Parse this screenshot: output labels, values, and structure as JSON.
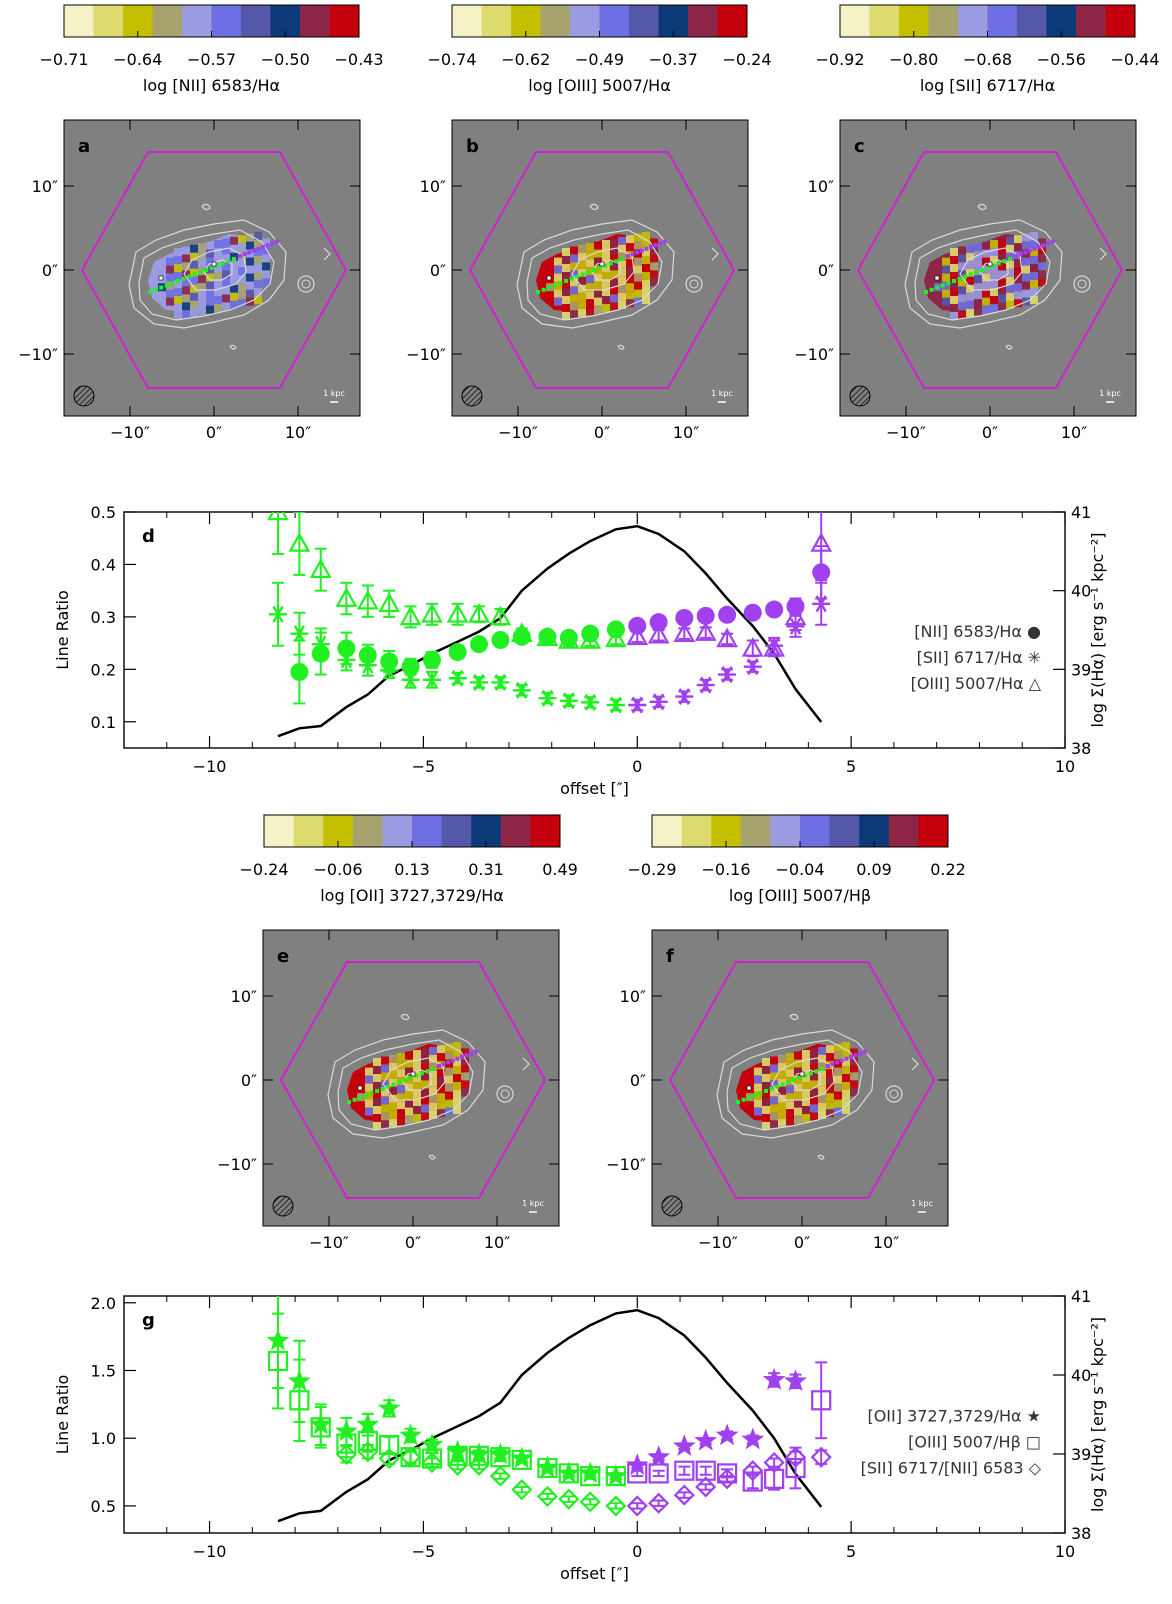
{
  "colormap": [
    "#f5f2c8",
    "#dedb6e",
    "#c4c000",
    "#a6a36f",
    "#9a9be0",
    "#6d6fe2",
    "#5557a8",
    "#0c3a78",
    "#8c2546",
    "#c4000c"
  ],
  "colors": {
    "green": "#21ef21",
    "purple": "#a040ee",
    "magenta": "#d020d0",
    "map_bg": "#808080",
    "contour": "#d9d9d9"
  },
  "maps": [
    {
      "panel": "a",
      "colorbar": {
        "ticks": [
          "−0.71",
          "−0.64",
          "−0.57",
          "−0.50",
          "−0.43"
        ],
        "label": "log [NII] 6583/Hα"
      }
    },
    {
      "panel": "b",
      "colorbar": {
        "ticks": [
          "−0.74",
          "−0.62",
          "−0.49",
          "−0.37",
          "−0.24"
        ],
        "label": "log [OIII] 5007/Hα"
      }
    },
    {
      "panel": "c",
      "colorbar": {
        "ticks": [
          "−0.92",
          "−0.80",
          "−0.68",
          "−0.56",
          "−0.44"
        ],
        "label": "log [SII] 6717/Hα"
      }
    },
    {
      "panel": "e",
      "colorbar": {
        "ticks": [
          "−0.24",
          "−0.06",
          "0.13",
          "0.31",
          "0.49"
        ],
        "label": "log [OII] 3727,3729/Hα"
      }
    },
    {
      "panel": "f",
      "colorbar": {
        "ticks": [
          "−0.29",
          "−0.16",
          "−0.04",
          "0.09",
          "0.22"
        ],
        "label": "log [OIII] 5007/Hβ"
      }
    }
  ],
  "map_axes": {
    "x_ticks": [
      "−10″",
      "0″",
      "10″"
    ],
    "y_ticks": [
      "10″",
      "0″",
      "−10″"
    ],
    "scalebar_label": "1 kpc"
  },
  "chart_data": [
    {
      "panel": "d",
      "type": "scatter",
      "xlabel": "offset [″]",
      "ylabel": "Line Ratio",
      "ylabel_right": "log Σ(Hα)  [erg s⁻¹ kpc⁻²]",
      "xlim": [
        -12,
        10
      ],
      "ylim": [
        0.05,
        0.5
      ],
      "ylim_right": [
        38,
        41
      ],
      "x_ticks": [
        "−10",
        "−5",
        "0",
        "5",
        "10"
      ],
      "y_ticks": [
        "0.1",
        "0.2",
        "0.3",
        "0.4",
        "0.5"
      ],
      "y_ticks_right": [
        "38",
        "39",
        "40",
        "41"
      ],
      "legend": [
        "[NII] 6583/Hα ●",
        "[SII] 6717/Hα ✳",
        "[OIII] 5007/Hα △"
      ],
      "series": [
        {
          "marker": "circle",
          "x": [
            -7.9,
            -7.4,
            -6.8,
            -6.3,
            -5.8,
            -5.3,
            -4.8,
            -4.2,
            -3.7,
            -3.2,
            -2.7,
            -2.1,
            -1.6,
            -1.1,
            -0.5,
            0.0,
            0.5,
            1.1,
            1.6,
            2.1,
            2.7,
            3.2,
            3.7,
            4.3
          ],
          "y": [
            0.195,
            0.23,
            0.24,
            0.227,
            0.215,
            0.205,
            0.218,
            0.233,
            0.248,
            0.256,
            0.262,
            0.262,
            0.26,
            0.268,
            0.276,
            0.283,
            0.29,
            0.298,
            0.302,
            0.304,
            0.308,
            0.314,
            0.32,
            0.385
          ],
          "err": [
            0.06,
            0.04,
            0.03,
            0.02,
            0.02,
            0.015,
            0.015,
            0.01,
            0.01,
            0.01,
            0.01,
            0.01,
            0.01,
            0.01,
            0.01,
            0.01,
            0.01,
            0.01,
            0.01,
            0.01,
            0.01,
            0.01,
            0.015,
            0.05
          ]
        },
        {
          "marker": "asterisk",
          "x": [
            -8.4,
            -7.9,
            -7.4,
            -6.8,
            -6.3,
            -5.8,
            -5.3,
            -4.8,
            -4.2,
            -3.7,
            -3.2,
            -2.7,
            -2.1,
            -1.6,
            -1.1,
            -0.5,
            0.0,
            0.5,
            1.1,
            1.6,
            2.1,
            2.7,
            3.2,
            3.7,
            4.3
          ],
          "y": [
            0.305,
            0.268,
            0.248,
            0.218,
            0.208,
            0.198,
            0.18,
            0.18,
            0.183,
            0.175,
            0.175,
            0.16,
            0.145,
            0.14,
            0.137,
            0.132,
            0.132,
            0.138,
            0.148,
            0.17,
            0.19,
            0.205,
            0.245,
            0.282,
            0.325
          ],
          "err": [
            0.06,
            0.04,
            0.03,
            0.02,
            0.02,
            0.015,
            0.015,
            0.015,
            0.01,
            0.01,
            0.01,
            0.01,
            0.01,
            0.01,
            0.01,
            0.01,
            0.01,
            0.01,
            0.01,
            0.01,
            0.01,
            0.01,
            0.015,
            0.02,
            0.04
          ]
        },
        {
          "marker": "triangle",
          "x": [
            -8.4,
            -7.9,
            -7.4,
            -6.8,
            -6.3,
            -5.8,
            -5.3,
            -4.8,
            -4.2,
            -3.7,
            -3.2,
            -2.7,
            -2.1,
            -1.6,
            -1.1,
            -0.5,
            0.0,
            0.5,
            1.1,
            1.6,
            2.1,
            2.7,
            3.2,
            3.7,
            4.3
          ],
          "y": [
            0.5,
            0.44,
            0.39,
            0.335,
            0.33,
            0.325,
            0.3,
            0.305,
            0.305,
            0.305,
            0.3,
            0.268,
            0.26,
            0.255,
            0.255,
            0.258,
            0.262,
            0.265,
            0.268,
            0.27,
            0.258,
            0.24,
            0.24,
            0.3,
            0.44
          ],
          "err": [
            0.08,
            0.06,
            0.04,
            0.03,
            0.03,
            0.025,
            0.02,
            0.02,
            0.02,
            0.015,
            0.015,
            0.01,
            0.01,
            0.01,
            0.01,
            0.01,
            0.01,
            0.01,
            0.01,
            0.01,
            0.01,
            0.015,
            0.015,
            0.025,
            0.07
          ]
        }
      ],
      "sigma_line": {
        "x": [
          -8.4,
          -7.9,
          -7.4,
          -6.8,
          -6.3,
          -5.8,
          -5.3,
          -4.8,
          -4.2,
          -3.7,
          -3.2,
          -2.7,
          -2.1,
          -1.6,
          -1.1,
          -0.5,
          0.0,
          0.5,
          1.1,
          1.6,
          2.1,
          2.7,
          3.2,
          3.7,
          4.3
        ],
        "y": [
          38.15,
          38.25,
          38.28,
          38.52,
          38.68,
          38.92,
          39.05,
          39.2,
          39.35,
          39.48,
          39.65,
          40.0,
          40.28,
          40.47,
          40.63,
          40.78,
          40.82,
          40.72,
          40.5,
          40.22,
          39.9,
          39.55,
          39.2,
          38.75,
          38.33
        ]
      }
    },
    {
      "panel": "g",
      "type": "scatter",
      "xlabel": "offset [″]",
      "ylabel": "Line Ratio",
      "ylabel_right": "log Σ(Hα)  [erg s⁻¹ kpc⁻²]",
      "xlim": [
        -12,
        10
      ],
      "ylim": [
        0.3,
        2.05
      ],
      "ylim_right": [
        38,
        41
      ],
      "x_ticks": [
        "−10",
        "−5",
        "0",
        "5",
        "10"
      ],
      "y_ticks": [
        "0.5",
        "1.0",
        "1.5",
        "2.0"
      ],
      "y_ticks_right": [
        "38",
        "39",
        "40",
        "41"
      ],
      "legend": [
        "[OII] 3727,3729/Hα ★",
        "[OIII] 5007/Hβ □",
        "[SII] 6717/[NII] 6583 ◇"
      ],
      "series": [
        {
          "marker": "star",
          "x": [
            -8.4,
            -7.9,
            -7.4,
            -6.8,
            -6.3,
            -5.8,
            -5.3,
            -4.8,
            -4.2,
            -3.7,
            -3.2,
            -2.7,
            -2.1,
            -1.6,
            -1.1,
            -0.5,
            0.0,
            0.5,
            1.1,
            1.6,
            2.1,
            2.7,
            3.2,
            3.7
          ],
          "y": [
            1.72,
            1.42,
            1.1,
            1.05,
            1.1,
            1.22,
            1.02,
            0.95,
            0.9,
            0.88,
            0.88,
            0.85,
            0.78,
            0.74,
            0.74,
            0.72,
            0.8,
            0.86,
            0.94,
            0.98,
            1.02,
            0.99,
            1.43,
            1.42
          ],
          "err": [
            0.35,
            0.3,
            0.15,
            0.1,
            0.08,
            0.06,
            0.05,
            0.04,
            0.03,
            0.03,
            0.03,
            0.02,
            0.02,
            0.02,
            0.02,
            0.02,
            0.02,
            0.02,
            0.02,
            0.02,
            0.03,
            0.03,
            0.05,
            0.05
          ]
        },
        {
          "marker": "square",
          "x": [
            -8.4,
            -7.9,
            -7.4,
            -6.8,
            -6.3,
            -5.8,
            -5.3,
            -4.8,
            -4.2,
            -3.7,
            -3.2,
            -2.7,
            -2.1,
            -1.6,
            -1.1,
            -0.5,
            0.0,
            0.5,
            1.1,
            1.6,
            2.1,
            2.7,
            3.2,
            3.7,
            4.3
          ],
          "y": [
            1.57,
            1.28,
            1.08,
            0.96,
            0.98,
            0.95,
            0.86,
            0.85,
            0.87,
            0.87,
            0.86,
            0.84,
            0.78,
            0.74,
            0.72,
            0.72,
            0.74,
            0.74,
            0.76,
            0.76,
            0.74,
            0.68,
            0.7,
            0.78,
            1.28
          ],
          "err": [
            0.35,
            0.3,
            0.15,
            0.1,
            0.08,
            0.06,
            0.05,
            0.04,
            0.03,
            0.03,
            0.03,
            0.02,
            0.02,
            0.02,
            0.02,
            0.02,
            0.02,
            0.02,
            0.03,
            0.03,
            0.03,
            0.05,
            0.08,
            0.15,
            0.28
          ]
        },
        {
          "marker": "diamond",
          "x": [
            -6.8,
            -6.3,
            -5.8,
            -5.3,
            -4.8,
            -4.2,
            -3.7,
            -3.2,
            -2.7,
            -2.1,
            -1.6,
            -1.1,
            -0.5,
            0.0,
            0.5,
            1.1,
            1.6,
            2.1,
            2.7,
            3.2,
            3.7,
            4.3
          ],
          "y": [
            0.88,
            0.9,
            0.85,
            0.86,
            0.82,
            0.8,
            0.8,
            0.72,
            0.62,
            0.57,
            0.55,
            0.53,
            0.5,
            0.5,
            0.52,
            0.58,
            0.64,
            0.7,
            0.76,
            0.82,
            0.86,
            0.86
          ],
          "err": [
            0.06,
            0.05,
            0.04,
            0.04,
            0.03,
            0.03,
            0.03,
            0.02,
            0.02,
            0.02,
            0.02,
            0.02,
            0.02,
            0.02,
            0.02,
            0.02,
            0.02,
            0.02,
            0.03,
            0.03,
            0.04,
            0.05
          ]
        }
      ],
      "sigma_line": {
        "x": [
          -8.4,
          -7.9,
          -7.4,
          -6.8,
          -6.3,
          -5.8,
          -5.3,
          -4.8,
          -4.2,
          -3.7,
          -3.2,
          -2.7,
          -2.1,
          -1.6,
          -1.1,
          -0.5,
          0.0,
          0.5,
          1.1,
          1.6,
          2.1,
          2.7,
          3.2,
          3.7,
          4.3
        ],
        "y": [
          38.15,
          38.25,
          38.28,
          38.52,
          38.68,
          38.92,
          39.05,
          39.2,
          39.35,
          39.48,
          39.65,
          40.0,
          40.28,
          40.47,
          40.63,
          40.78,
          40.82,
          40.72,
          40.5,
          40.22,
          39.9,
          39.55,
          39.2,
          38.75,
          38.33
        ]
      }
    }
  ]
}
